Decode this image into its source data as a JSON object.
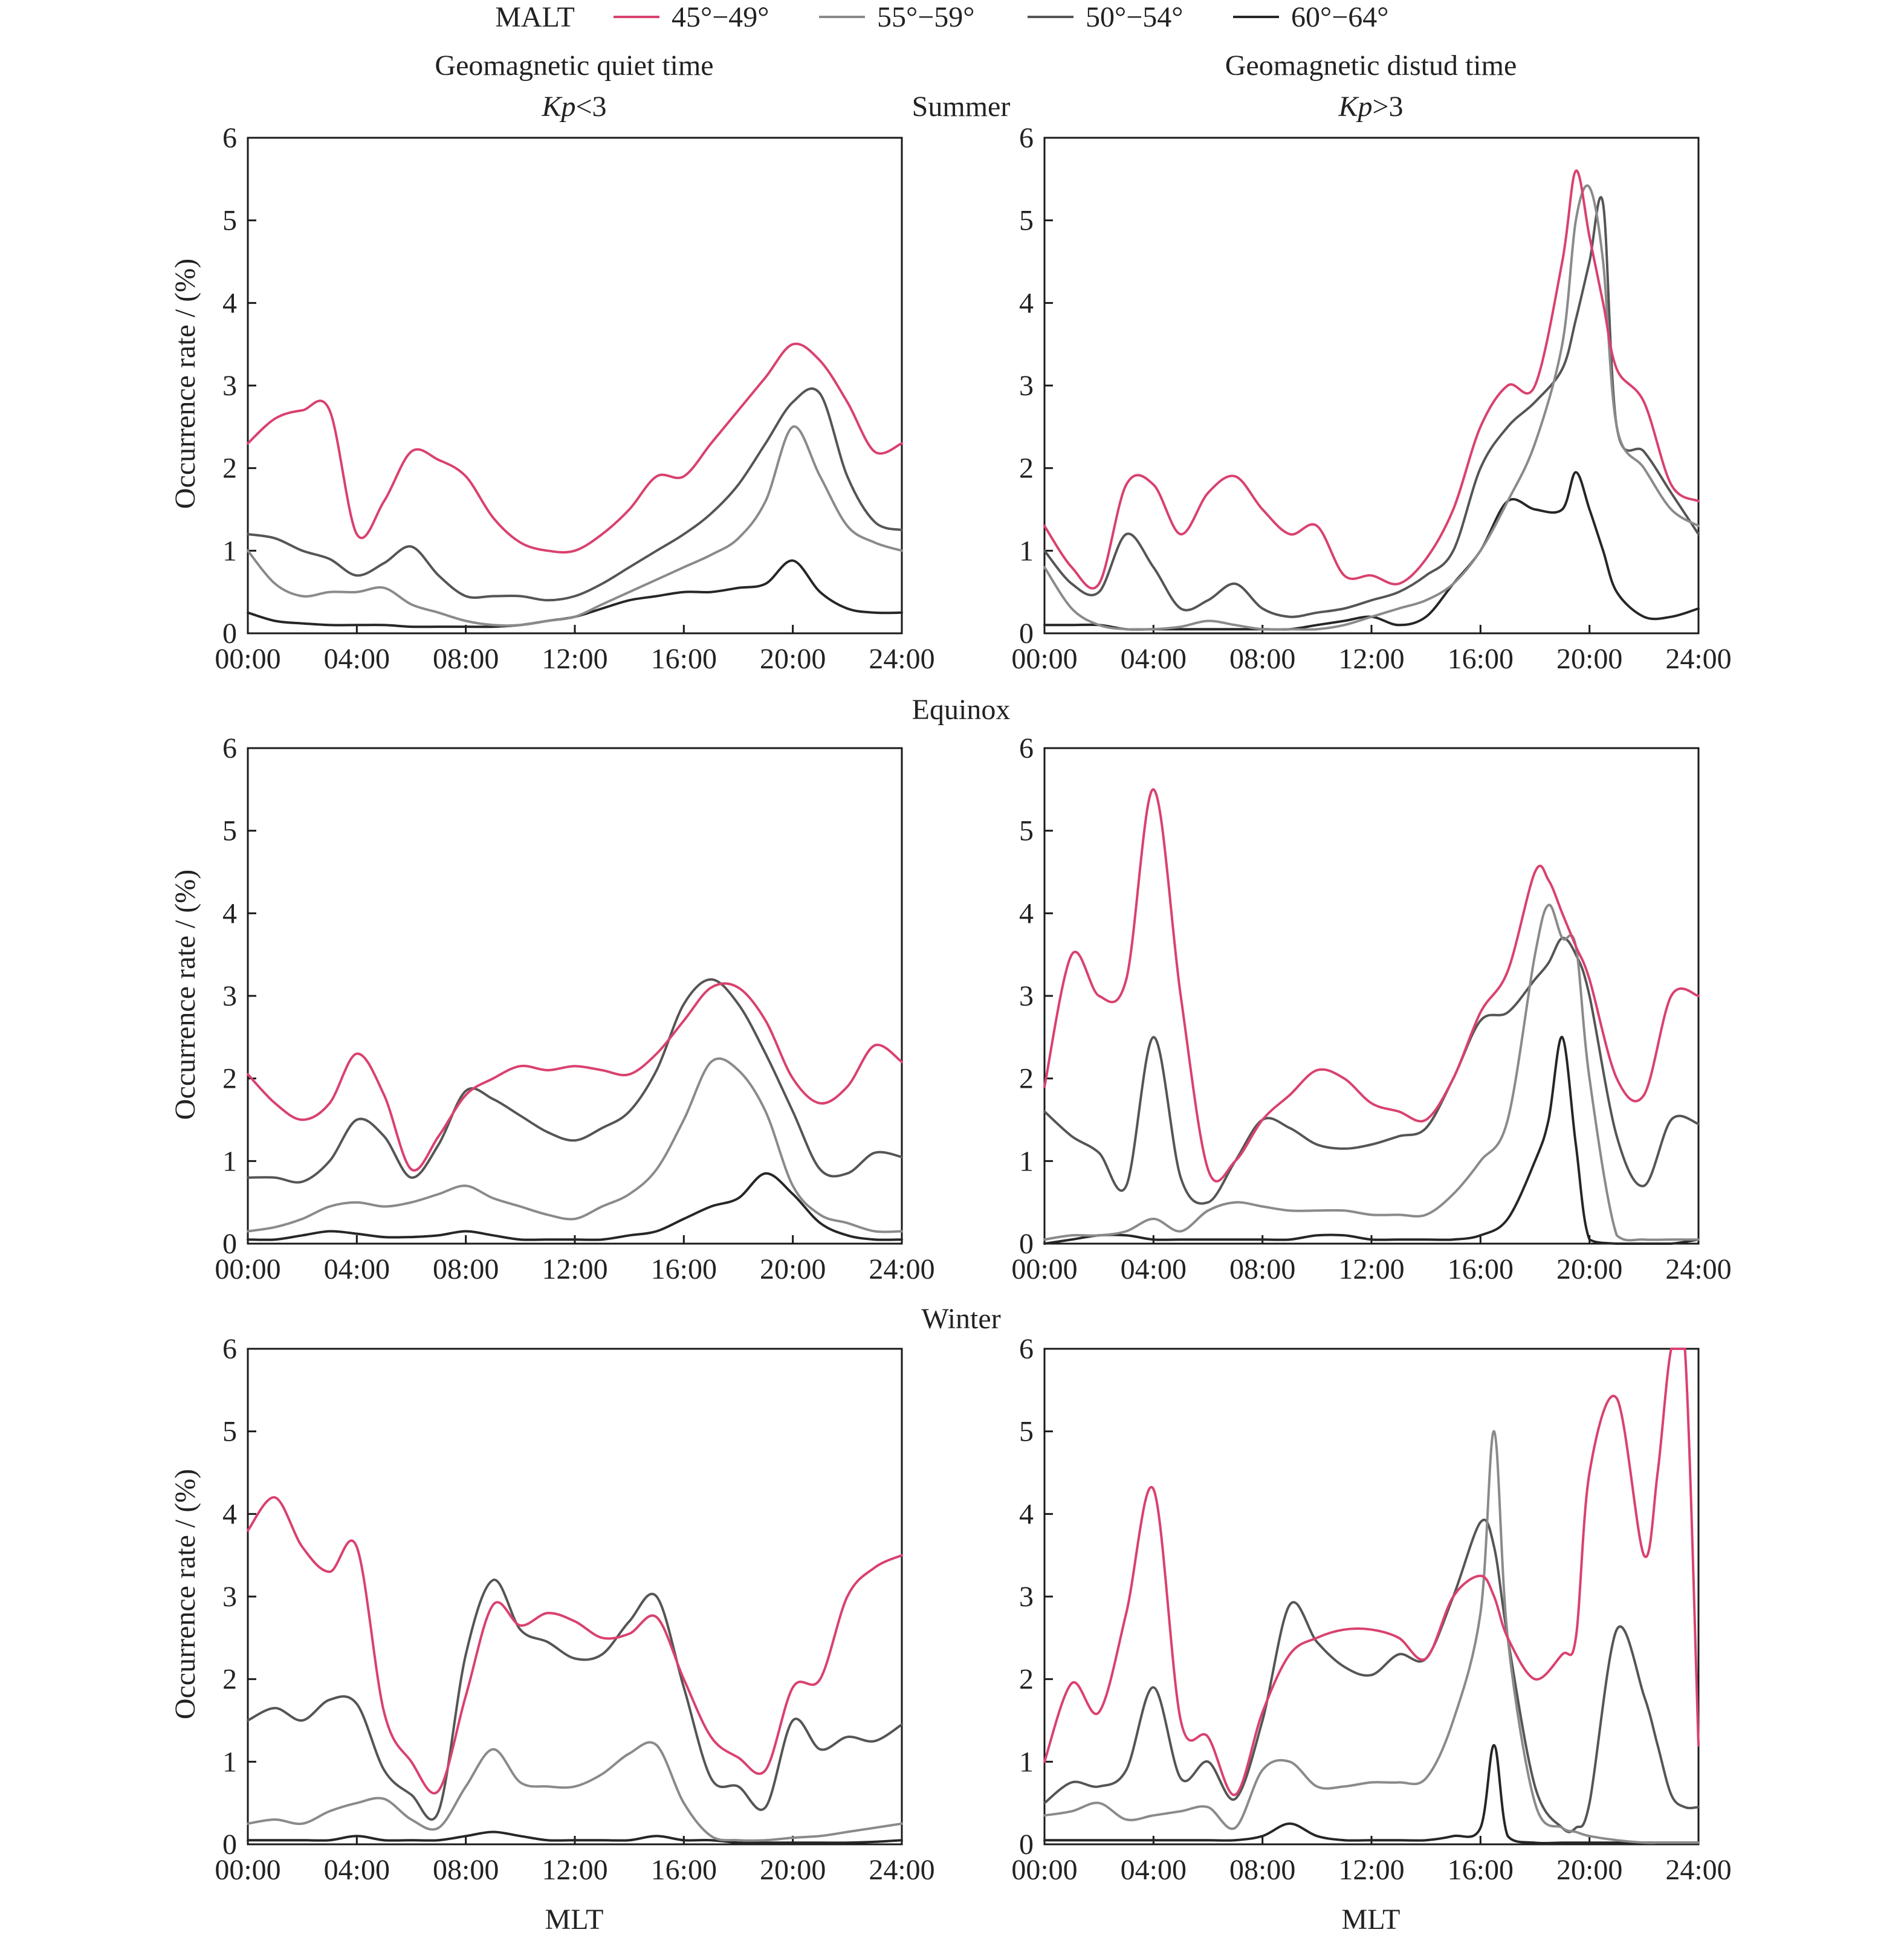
{
  "legend": {
    "title": "MALT",
    "items": [
      {
        "label": "45°−49°",
        "color": "#d9416e"
      },
      {
        "label": "55°−59°",
        "color": "#8a8a8a"
      },
      {
        "label": "50°−54°",
        "color": "#555555"
      },
      {
        "label": "60°−64°",
        "color": "#262626"
      }
    ]
  },
  "column_headers": {
    "left": {
      "title": "Geomagnetic quiet time",
      "condition_var": "Kp",
      "condition_rest": "<3"
    },
    "right": {
      "title": "Geomagnetic distud time",
      "condition_var": "Kp",
      "condition_rest": ">3"
    }
  },
  "row_labels": [
    "Summer",
    "Equinox",
    "Winter"
  ],
  "ylabel": "Occurrence rate / (%)",
  "xlabel": "MLT",
  "chart_data": [
    {
      "type": "line",
      "season": "Summer",
      "condition": "quiet",
      "xlim": [
        0,
        24
      ],
      "ylim": [
        0,
        6
      ],
      "x_tick_labels": [
        "00:00",
        "04:00",
        "08:00",
        "12:00",
        "16:00",
        "20:00",
        "24:00"
      ],
      "y_tick_labels": [
        "0",
        "1",
        "2",
        "3",
        "4",
        "5",
        "6"
      ],
      "x": [
        0,
        1,
        2,
        3,
        4,
        5,
        6,
        7,
        8,
        9,
        10,
        11,
        12,
        13,
        14,
        15,
        16,
        17,
        18,
        19,
        20,
        21,
        22,
        23,
        24
      ],
      "series": [
        {
          "name": "45°−49°",
          "color": "#d9416e",
          "values": [
            2.3,
            2.6,
            2.7,
            2.7,
            1.2,
            1.6,
            2.2,
            2.1,
            1.9,
            1.4,
            1.1,
            1.0,
            1.0,
            1.2,
            1.5,
            1.9,
            1.9,
            2.3,
            2.7,
            3.1,
            3.5,
            3.3,
            2.8,
            2.2,
            2.3
          ]
        },
        {
          "name": "55°−59°",
          "color": "#8a8a8a",
          "values": [
            1.0,
            0.6,
            0.45,
            0.5,
            0.5,
            0.55,
            0.35,
            0.25,
            0.15,
            0.1,
            0.1,
            0.15,
            0.2,
            0.35,
            0.5,
            0.65,
            0.8,
            0.95,
            1.15,
            1.6,
            2.5,
            1.9,
            1.3,
            1.1,
            1.0
          ]
        },
        {
          "name": "50°−54°",
          "color": "#555555",
          "values": [
            1.2,
            1.15,
            1.0,
            0.9,
            0.7,
            0.85,
            1.05,
            0.7,
            0.45,
            0.45,
            0.45,
            0.4,
            0.45,
            0.6,
            0.8,
            1.0,
            1.2,
            1.45,
            1.8,
            2.3,
            2.8,
            2.9,
            1.9,
            1.35,
            1.25
          ]
        },
        {
          "name": "60°−64°",
          "color": "#262626",
          "values": [
            0.25,
            0.15,
            0.12,
            0.1,
            0.1,
            0.1,
            0.08,
            0.08,
            0.08,
            0.08,
            0.1,
            0.15,
            0.2,
            0.3,
            0.4,
            0.45,
            0.5,
            0.5,
            0.55,
            0.6,
            0.88,
            0.5,
            0.3,
            0.25,
            0.25
          ]
        }
      ]
    },
    {
      "type": "line",
      "season": "Summer",
      "condition": "disturbed",
      "xlim": [
        0,
        24
      ],
      "ylim": [
        0,
        6
      ],
      "x_tick_labels": [
        "00:00",
        "04:00",
        "08:00",
        "12:00",
        "16:00",
        "20:00",
        "24:00"
      ],
      "y_tick_labels": [
        "0",
        "1",
        "2",
        "3",
        "4",
        "5",
        "6"
      ],
      "x": [
        0,
        1,
        2,
        3,
        4,
        5,
        6,
        7,
        8,
        9,
        10,
        11,
        12,
        13,
        14,
        15,
        16,
        17,
        18,
        19,
        19.5,
        20,
        20.5,
        21,
        22,
        23,
        24
      ],
      "series": [
        {
          "name": "45°−49°",
          "color": "#d9416e",
          "values": [
            1.3,
            0.8,
            0.6,
            1.8,
            1.8,
            1.2,
            1.7,
            1.9,
            1.5,
            1.2,
            1.3,
            0.7,
            0.7,
            0.6,
            0.9,
            1.5,
            2.5,
            3.0,
            3.0,
            4.5,
            5.6,
            4.8,
            4.0,
            3.2,
            2.8,
            1.8,
            1.6
          ]
        },
        {
          "name": "55°−59°",
          "color": "#8a8a8a",
          "values": [
            0.8,
            0.3,
            0.1,
            0.05,
            0.05,
            0.08,
            0.15,
            0.1,
            0.05,
            0.05,
            0.05,
            0.1,
            0.2,
            0.3,
            0.4,
            0.6,
            1.0,
            1.6,
            2.3,
            3.5,
            5.0,
            5.4,
            4.5,
            2.5,
            2.0,
            1.5,
            1.3
          ]
        },
        {
          "name": "50°−54°",
          "color": "#555555",
          "values": [
            1.0,
            0.6,
            0.5,
            1.2,
            0.8,
            0.3,
            0.4,
            0.6,
            0.3,
            0.2,
            0.25,
            0.3,
            0.4,
            0.5,
            0.7,
            1.0,
            2.0,
            2.5,
            2.8,
            3.2,
            3.8,
            4.5,
            5.2,
            2.5,
            2.2,
            1.7,
            1.2
          ]
        },
        {
          "name": "60°−64°",
          "color": "#262626",
          "values": [
            0.1,
            0.1,
            0.1,
            0.05,
            0.05,
            0.05,
            0.05,
            0.05,
            0.05,
            0.05,
            0.1,
            0.15,
            0.2,
            0.1,
            0.2,
            0.6,
            1.0,
            1.6,
            1.5,
            1.5,
            1.95,
            1.5,
            1.0,
            0.5,
            0.2,
            0.2,
            0.3
          ]
        }
      ]
    },
    {
      "type": "line",
      "season": "Equinox",
      "condition": "quiet",
      "xlim": [
        0,
        24
      ],
      "ylim": [
        0,
        6
      ],
      "x_tick_labels": [
        "00:00",
        "04:00",
        "08:00",
        "12:00",
        "16:00",
        "20:00",
        "24:00"
      ],
      "y_tick_labels": [
        "0",
        "1",
        "2",
        "3",
        "4",
        "5",
        "6"
      ],
      "x": [
        0,
        1,
        2,
        3,
        4,
        5,
        6,
        7,
        8,
        9,
        10,
        11,
        12,
        13,
        14,
        15,
        16,
        17,
        18,
        19,
        20,
        21,
        22,
        23,
        24
      ],
      "series": [
        {
          "name": "45°−49°",
          "color": "#d9416e",
          "values": [
            2.05,
            1.7,
            1.5,
            1.7,
            2.3,
            1.8,
            0.9,
            1.3,
            1.8,
            2.0,
            2.15,
            2.1,
            2.15,
            2.1,
            2.05,
            2.3,
            2.7,
            3.1,
            3.1,
            2.7,
            2.0,
            1.7,
            1.9,
            2.4,
            2.2
          ]
        },
        {
          "name": "55°−59°",
          "color": "#8a8a8a",
          "values": [
            0.15,
            0.2,
            0.3,
            0.45,
            0.5,
            0.45,
            0.5,
            0.6,
            0.7,
            0.55,
            0.45,
            0.35,
            0.3,
            0.45,
            0.6,
            0.9,
            1.5,
            2.2,
            2.1,
            1.6,
            0.7,
            0.35,
            0.25,
            0.15,
            0.15
          ]
        },
        {
          "name": "50°−54°",
          "color": "#555555",
          "values": [
            0.8,
            0.8,
            0.75,
            1.0,
            1.5,
            1.3,
            0.8,
            1.2,
            1.85,
            1.75,
            1.55,
            1.35,
            1.25,
            1.4,
            1.6,
            2.1,
            2.9,
            3.2,
            2.9,
            2.3,
            1.6,
            0.9,
            0.85,
            1.1,
            1.05
          ]
        },
        {
          "name": "60°−64°",
          "color": "#262626",
          "values": [
            0.05,
            0.05,
            0.1,
            0.15,
            0.12,
            0.08,
            0.08,
            0.1,
            0.15,
            0.1,
            0.05,
            0.05,
            0.05,
            0.05,
            0.1,
            0.15,
            0.3,
            0.45,
            0.55,
            0.85,
            0.6,
            0.25,
            0.1,
            0.05,
            0.05
          ]
        }
      ]
    },
    {
      "type": "line",
      "season": "Equinox",
      "condition": "disturbed",
      "xlim": [
        0,
        24
      ],
      "ylim": [
        0,
        6
      ],
      "x_tick_labels": [
        "00:00",
        "04:00",
        "08:00",
        "12:00",
        "16:00",
        "20:00",
        "24:00"
      ],
      "y_tick_labels": [
        "0",
        "1",
        "2",
        "3",
        "4",
        "5",
        "6"
      ],
      "x": [
        0,
        1,
        2,
        3,
        4,
        5,
        6,
        7,
        8,
        9,
        10,
        11,
        12,
        13,
        14,
        15,
        16,
        17,
        18,
        18.5,
        19,
        19.5,
        20,
        21,
        22,
        23,
        24
      ],
      "series": [
        {
          "name": "45°−49°",
          "color": "#d9416e",
          "values": [
            1.9,
            3.5,
            3.0,
            3.2,
            5.5,
            3.0,
            0.9,
            1.0,
            1.5,
            1.8,
            2.1,
            2.0,
            1.7,
            1.6,
            1.5,
            2.0,
            2.8,
            3.3,
            4.5,
            4.4,
            4.0,
            3.6,
            3.2,
            2.0,
            1.8,
            3.0,
            3.0
          ]
        },
        {
          "name": "55°−59°",
          "color": "#8a8a8a",
          "values": [
            0.05,
            0.1,
            0.1,
            0.15,
            0.3,
            0.15,
            0.4,
            0.5,
            0.45,
            0.4,
            0.4,
            0.4,
            0.35,
            0.35,
            0.35,
            0.6,
            1.0,
            1.5,
            3.5,
            4.1,
            3.7,
            3.6,
            2.0,
            0.1,
            0.05,
            0.05,
            0.05
          ]
        },
        {
          "name": "50°−54°",
          "color": "#555555",
          "values": [
            1.6,
            1.3,
            1.1,
            0.7,
            2.5,
            0.8,
            0.5,
            1.0,
            1.5,
            1.4,
            1.2,
            1.15,
            1.2,
            1.3,
            1.4,
            2.0,
            2.7,
            2.8,
            3.2,
            3.4,
            3.7,
            3.5,
            3.0,
            1.3,
            0.7,
            1.5,
            1.45
          ]
        },
        {
          "name": "60°−64°",
          "color": "#262626",
          "values": [
            0.0,
            0.05,
            0.1,
            0.1,
            0.05,
            0.05,
            0.05,
            0.05,
            0.05,
            0.05,
            0.1,
            0.1,
            0.05,
            0.05,
            0.05,
            0.05,
            0.1,
            0.3,
            1.0,
            1.5,
            2.5,
            1.2,
            0.05,
            0.0,
            0.0,
            0.0,
            0.05
          ]
        }
      ]
    },
    {
      "type": "line",
      "season": "Winter",
      "condition": "quiet",
      "xlim": [
        0,
        24
      ],
      "ylim": [
        0,
        6
      ],
      "x_tick_labels": [
        "00:00",
        "04:00",
        "08:00",
        "12:00",
        "16:00",
        "20:00",
        "24:00"
      ],
      "y_tick_labels": [
        "0",
        "1",
        "2",
        "3",
        "4",
        "5",
        "6"
      ],
      "x": [
        0,
        1,
        2,
        3,
        4,
        5,
        6,
        7,
        8,
        9,
        10,
        11,
        12,
        13,
        14,
        15,
        16,
        17,
        18,
        19,
        20,
        21,
        22,
        23,
        24
      ],
      "series": [
        {
          "name": "45°−49°",
          "color": "#d9416e",
          "values": [
            3.8,
            4.2,
            3.6,
            3.3,
            3.6,
            1.6,
            1.0,
            0.65,
            1.8,
            2.9,
            2.65,
            2.8,
            2.7,
            2.5,
            2.55,
            2.75,
            2.0,
            1.3,
            1.05,
            0.9,
            1.9,
            2.0,
            3.0,
            3.35,
            3.5
          ]
        },
        {
          "name": "55°−59°",
          "color": "#8a8a8a",
          "values": [
            0.25,
            0.3,
            0.25,
            0.4,
            0.5,
            0.55,
            0.3,
            0.2,
            0.7,
            1.15,
            0.75,
            0.7,
            0.7,
            0.85,
            1.1,
            1.2,
            0.5,
            0.1,
            0.05,
            0.05,
            0.08,
            0.1,
            0.15,
            0.2,
            0.25
          ]
        },
        {
          "name": "50°−54°",
          "color": "#555555",
          "values": [
            1.5,
            1.65,
            1.5,
            1.75,
            1.7,
            0.9,
            0.6,
            0.4,
            2.3,
            3.2,
            2.6,
            2.45,
            2.25,
            2.3,
            2.7,
            3.0,
            1.9,
            0.8,
            0.7,
            0.45,
            1.5,
            1.15,
            1.3,
            1.25,
            1.45
          ]
        },
        {
          "name": "60°−64°",
          "color": "#262626",
          "values": [
            0.05,
            0.05,
            0.05,
            0.05,
            0.1,
            0.05,
            0.05,
            0.05,
            0.1,
            0.15,
            0.1,
            0.05,
            0.05,
            0.05,
            0.05,
            0.1,
            0.05,
            0.05,
            0.02,
            0.02,
            0.02,
            0.02,
            0.02,
            0.03,
            0.05
          ]
        }
      ]
    },
    {
      "type": "line",
      "season": "Winter",
      "condition": "disturbed",
      "xlim": [
        0,
        24
      ],
      "ylim": [
        0,
        6
      ],
      "x_tick_labels": [
        "00:00",
        "04:00",
        "08:00",
        "12:00",
        "16:00",
        "20:00",
        "24:00"
      ],
      "y_tick_labels": [
        "0",
        "1",
        "2",
        "3",
        "4",
        "5",
        "6"
      ],
      "x": [
        0,
        1,
        2,
        3,
        4,
        5,
        6,
        7,
        8,
        9,
        10,
        11,
        12,
        13,
        14,
        15,
        16,
        16.5,
        17,
        18,
        19,
        19.5,
        20,
        21,
        22,
        22.5,
        23,
        23.5,
        24
      ],
      "series": [
        {
          "name": "45°−49°",
          "color": "#d9416e",
          "values": [
            1.0,
            1.95,
            1.6,
            2.8,
            4.3,
            1.5,
            1.3,
            0.6,
            1.6,
            2.3,
            2.5,
            2.6,
            2.6,
            2.5,
            2.25,
            3.0,
            3.25,
            3.0,
            2.5,
            2.0,
            2.3,
            2.5,
            4.5,
            5.4,
            3.5,
            4.5,
            6.0,
            6.0,
            1.2
          ]
        },
        {
          "name": "55°−59°",
          "color": "#8a8a8a",
          "values": [
            0.35,
            0.4,
            0.5,
            0.3,
            0.35,
            0.4,
            0.45,
            0.2,
            0.9,
            1.0,
            0.7,
            0.7,
            0.75,
            0.75,
            0.8,
            1.5,
            2.8,
            5.0,
            2.5,
            0.5,
            0.2,
            0.15,
            0.1,
            0.05,
            0.02,
            0.02,
            0.02,
            0.02,
            0.02
          ]
        },
        {
          "name": "50°−54°",
          "color": "#555555",
          "values": [
            0.5,
            0.75,
            0.7,
            0.9,
            1.9,
            0.8,
            1.0,
            0.55,
            1.5,
            2.9,
            2.45,
            2.15,
            2.05,
            2.3,
            2.25,
            3.0,
            3.9,
            3.6,
            2.5,
            0.7,
            0.2,
            0.2,
            0.5,
            2.6,
            1.8,
            1.2,
            0.6,
            0.45,
            0.45
          ]
        },
        {
          "name": "60°−64°",
          "color": "#262626",
          "values": [
            0.05,
            0.05,
            0.05,
            0.05,
            0.05,
            0.05,
            0.05,
            0.05,
            0.1,
            0.25,
            0.1,
            0.05,
            0.05,
            0.05,
            0.05,
            0.1,
            0.2,
            1.2,
            0.1,
            0.02,
            0.02,
            0.02,
            0.02,
            0.02,
            0.02,
            0.02,
            0.02,
            0.02,
            0.02
          ]
        }
      ]
    }
  ]
}
